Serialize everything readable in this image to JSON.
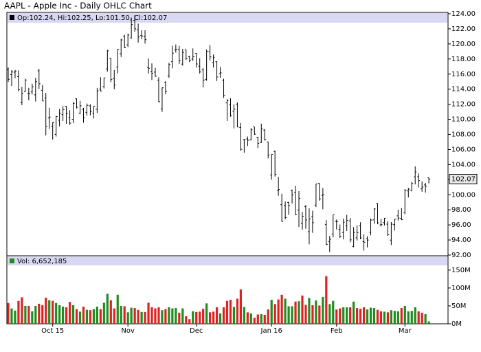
{
  "chart_data": {
    "type": "ohlc",
    "title": "AAPL - Apple Inc - Daily OHLC Chart",
    "info_label": "Op:102.24, Hi:102.25, Lo:101.50, Cl:102.07",
    "last_label": "102.07",
    "color": "#000000",
    "categories": [
      null,
      null,
      null,
      null,
      null,
      null,
      null,
      null,
      null,
      null,
      null,
      null,
      null,
      "Oct 15",
      null,
      null,
      null,
      null,
      null,
      null,
      null,
      null,
      null,
      null,
      null,
      null,
      null,
      null,
      null,
      null,
      null,
      null,
      null,
      null,
      null,
      "Nov",
      null,
      null,
      null,
      null,
      null,
      null,
      null,
      null,
      null,
      null,
      null,
      null,
      null,
      null,
      null,
      null,
      null,
      null,
      null,
      "Dec",
      null,
      null,
      null,
      null,
      null,
      null,
      null,
      null,
      null,
      null,
      null,
      null,
      null,
      null,
      null,
      null,
      null,
      null,
      null,
      null,
      null,
      "Jan 16",
      null,
      null,
      null,
      null,
      null,
      null,
      null,
      null,
      null,
      null,
      null,
      null,
      null,
      null,
      null,
      null,
      null,
      null,
      "Feb",
      null,
      null,
      null,
      null,
      null,
      null,
      null,
      null,
      null,
      null,
      null,
      null,
      null,
      null,
      null,
      null,
      null,
      null,
      null,
      "Mar",
      null,
      null,
      null,
      null,
      null,
      null,
      null
    ],
    "open": [
      116.58,
      115.93,
      116.25,
      115.66,
      112.21,
      113.67,
      113.38,
      113.63,
      113.25,
      116.44,
      113.85,
      112.83,
      110.17,
      109.07,
      108.01,
      109.88,
      110.63,
      111.74,
      110.19,
      110.0,
      112.73,
      110.82,
      111.34,
      110.93,
      111.78,
      110.8,
      111.34,
      114.0,
      114.33,
      116.7,
      118.08,
      115.4,
      116.93,
      118.7,
      120.99,
      119.87,
      120.79,
      123.13,
      121.85,
      121.11,
      120.96,
      116.9,
      116.37,
      116.26,
      115.2,
      111.38,
      114.92,
      115.76,
      117.64,
      119.2,
      119.27,
      117.33,
      119.21,
      118.29,
      117.99,
      118.75,
      117.05,
      116.55,
      115.29,
      118.98,
      117.52,
      117.64,
      116.04,
      115.19,
      112.18,
      111.94,
      111.07,
      112.02,
      108.91,
      107.28,
      107.4,
      107.27,
      109.0,
      107.59,
      106.96,
      108.58,
      107.01,
      102.61,
      105.75,
      100.56,
      98.68,
      98.55,
      98.97,
      100.55,
      100.32,
      97.96,
      96.2,
      98.41,
      95.1,
      97.06,
      98.63,
      101.52,
      99.93,
      96.04,
      93.79,
      94.79,
      96.47,
      95.42,
      95.0,
      95.86,
      96.52,
      93.13,
      94.29,
      95.92,
      93.79,
      94.19,
      95.02,
      96.67,
      98.84,
      96.0,
      96.31,
      96.1,
      93.98,
      96.05,
      97.2,
      96.86,
      97.65,
      100.51,
      100.58,
      102.37,
      102.39,
      100.78,
      101.31,
      102.24
    ],
    "high": [
      116.89,
      116.53,
      116.54,
      116.49,
      114.3,
      115.37,
      114.18,
      114.72,
      115.5,
      116.69,
      114.57,
      113.51,
      111.54,
      109.62,
      110.45,
      111.37,
      111.74,
      111.77,
      111.2,
      112.28,
      112.75,
      112.45,
      111.52,
      112.1,
      112.0,
      111.75,
      114.17,
      115.58,
      115.5,
      119.23,
      118.13,
      116.54,
      119.3,
      120.69,
      121.22,
      121.36,
      123.49,
      123.82,
      122.69,
      121.81,
      121.81,
      118.07,
      117.42,
      116.82,
      115.57,
      114.24,
      115.05,
      117.49,
      119.75,
      119.92,
      119.73,
      119.35,
      119.23,
      118.41,
      119.41,
      118.81,
      118.11,
      116.79,
      119.25,
      119.86,
      118.6,
      117.69,
      116.94,
      115.39,
      112.68,
      112.8,
      111.99,
      112.25,
      109.52,
      107.37,
      107.72,
      108.85,
      109.0,
      107.69,
      109.43,
      108.7,
      107.03,
      105.37,
      105.85,
      102.37,
      100.13,
      99.11,
      99.06,
      100.69,
      101.19,
      100.48,
      97.71,
      98.65,
      98.19,
      97.88,
      101.46,
      101.53,
      100.88,
      96.63,
      94.52,
      97.34,
      96.71,
      96.04,
      96.84,
      97.33,
      96.92,
      95.7,
      95.94,
      96.35,
      94.72,
      94.5,
      96.85,
      98.21,
      98.89,
      96.76,
      96.9,
      96.5,
      96.38,
      96.76,
      98.02,
      98.23,
      100.77,
      100.89,
      101.71,
      103.75,
      102.83,
      101.76,
      101.58,
      102.25
    ],
    "low": [
      114.94,
      114.42,
      115.44,
      113.72,
      111.87,
      113.66,
      112.52,
      113.3,
      112.37,
      114.02,
      112.44,
      107.86,
      108.73,
      107.31,
      107.72,
      109.07,
      109.77,
      109.41,
      109.25,
      109.49,
      111.44,
      110.68,
      109.56,
      110.49,
      110.53,
      110.11,
      110.82,
      113.7,
      114.1,
      116.33,
      114.92,
      113.99,
      116.06,
      118.27,
      119.45,
      119.61,
      120.7,
      121.62,
      120.18,
      120.62,
      120.05,
      116.06,
      115.21,
      115.65,
      112.27,
      111.0,
      113.32,
      115.5,
      116.76,
      118.85,
      117.34,
      117.12,
      117.87,
      117.6,
      117.75,
      116.86,
      116.08,
      114.22,
      115.11,
      117.81,
      116.86,
      115.08,
      115.51,
      112.85,
      109.79,
      110.35,
      108.8,
      108.98,
      105.81,
      105.57,
      106.45,
      107.2,
      107.95,
      106.18,
      106.86,
      107.18,
      104.82,
      102.0,
      102.41,
      99.87,
      96.43,
      96.76,
      97.34,
      98.84,
      97.3,
      95.74,
      95.36,
      95.5,
      93.42,
      94.94,
      98.37,
      99.21,
      98.07,
      93.34,
      92.39,
      94.35,
      95.4,
      94.28,
      94.08,
      95.19,
      93.69,
      93.04,
      93.93,
      94.1,
      92.59,
      93.01,
      94.61,
      96.15,
      96.09,
      95.8,
      95.92,
      94.55,
      93.32,
      95.25,
      96.58,
      96.65,
      97.42,
      99.64,
      100.45,
      101.37,
      100.96,
      100.4,
      100.27,
      101.5
    ],
    "close": [
      115.31,
      116.28,
      116.41,
      113.92,
      113.45,
      115.21,
      113.4,
      114.32,
      115.0,
      114.71,
      112.44,
      109.06,
      110.3,
      109.58,
      110.38,
      110.78,
      111.31,
      110.78,
      109.5,
      112.12,
      111.6,
      111.79,
      110.21,
      111.86,
      111.04,
      111.73,
      113.77,
      113.76,
      115.5,
      119.08,
      115.28,
      114.55,
      119.27,
      120.53,
      119.5,
      121.18,
      122.57,
      122.0,
      120.92,
      121.06,
      120.57,
      116.77,
      116.11,
      115.72,
      112.34,
      114.18,
      113.69,
      117.29,
      118.78,
      119.3,
      117.75,
      118.88,
      118.03,
      117.81,
      118.3,
      117.34,
      116.28,
      115.2,
      119.03,
      118.28,
      118.23,
      115.62,
      116.17,
      113.18,
      112.48,
      110.49,
      111.34,
      108.98,
      106.03,
      107.33,
      107.23,
      108.61,
      108.03,
      106.82,
      108.74,
      107.32,
      105.26,
      105.35,
      102.71,
      100.7,
      96.45,
      96.96,
      98.53,
      99.96,
      97.39,
      99.52,
      97.13,
      96.66,
      96.79,
      96.3,
      101.42,
      99.44,
      99.99,
      93.42,
      94.09,
      97.34,
      96.43,
      94.48,
      96.35,
      96.6,
      94.02,
      95.01,
      94.99,
      94.27,
      93.7,
      93.99,
      96.64,
      98.12,
      96.26,
      96.04,
      96.88,
      94.69,
      96.1,
      96.76,
      96.91,
      96.69,
      100.53,
      100.75,
      101.5,
      103.01,
      101.87,
      101.03,
      101.12,
      102.07
    ],
    "ylim": [
      92,
      124
    ],
    "yticks": [
      {
        "value": 92,
        "label": "92.00"
      },
      {
        "value": 94,
        "label": "94.00"
      },
      {
        "value": 96,
        "label": "96.00"
      },
      {
        "value": 98,
        "label": "98.00"
      },
      {
        "value": 100,
        "label": "100.00"
      },
      {
        "value": 102,
        "label": "102.00"
      },
      {
        "value": 104,
        "label": "104.00"
      },
      {
        "value": 106,
        "label": "106.00"
      },
      {
        "value": 108,
        "label": "108.00"
      },
      {
        "value": 110,
        "label": "110.00"
      },
      {
        "value": 112,
        "label": "112.00"
      },
      {
        "value": 114,
        "label": "114.00"
      },
      {
        "value": 116,
        "label": "116.00"
      },
      {
        "value": 118,
        "label": "118.00"
      },
      {
        "value": 120,
        "label": "120.00"
      },
      {
        "value": 122,
        "label": "122.00"
      },
      {
        "value": 124,
        "label": "124.00"
      }
    ],
    "volume": {
      "type": "bar",
      "info_label": "Vol: 6,652,185",
      "up_color": "#1e8c1e",
      "down_color": "#dd2222",
      "values": [
        58000000,
        43000000,
        37000000,
        64000000,
        74000000,
        50000000,
        50000000,
        35000000,
        50000000,
        56000000,
        52000000,
        73000000,
        66000000,
        64000000,
        58000000,
        52000000,
        48000000,
        46000000,
        61000000,
        52000000,
        41000000,
        34000000,
        48000000,
        39000000,
        38000000,
        41000000,
        48000000,
        41000000,
        59000000,
        84000000,
        66000000,
        43000000,
        81000000,
        50000000,
        49000000,
        32000000,
        45000000,
        44000000,
        39000000,
        33000000,
        33000000,
        59000000,
        46000000,
        43000000,
        46000000,
        38000000,
        41000000,
        46000000,
        43000000,
        44000000,
        31000000,
        43000000,
        21000000,
        13000000,
        35000000,
        33000000,
        34000000,
        42000000,
        57000000,
        32000000,
        34000000,
        46000000,
        29000000,
        46000000,
        64000000,
        67000000,
        47000000,
        70000000,
        96000000,
        47000000,
        32000000,
        29000000,
        17000000,
        26000000,
        27000000,
        25000000,
        40000000,
        67000000,
        55000000,
        68000000,
        81000000,
        70000000,
        49000000,
        49000000,
        62000000,
        63000000,
        79000000,
        53000000,
        72000000,
        52000000,
        65000000,
        51000000,
        75000000,
        133000000,
        55000000,
        64000000,
        40000000,
        43000000,
        46000000,
        46000000,
        46000000,
        62000000,
        44000000,
        42000000,
        46000000,
        40000000,
        45000000,
        44000000,
        39000000,
        35000000,
        34000000,
        32000000,
        38000000,
        36000000,
        35000000,
        44000000,
        50000000,
        35000000,
        36000000,
        46000000,
        35000000,
        31000000,
        27000000,
        6652185
      ],
      "ylim": [
        0,
        190000000
      ],
      "yticks": [
        {
          "value": 0,
          "label": "0M"
        },
        {
          "value": 50000000,
          "label": "50M"
        },
        {
          "value": 100000000,
          "label": "100M"
        },
        {
          "value": 150000000,
          "label": "150M"
        }
      ]
    }
  }
}
